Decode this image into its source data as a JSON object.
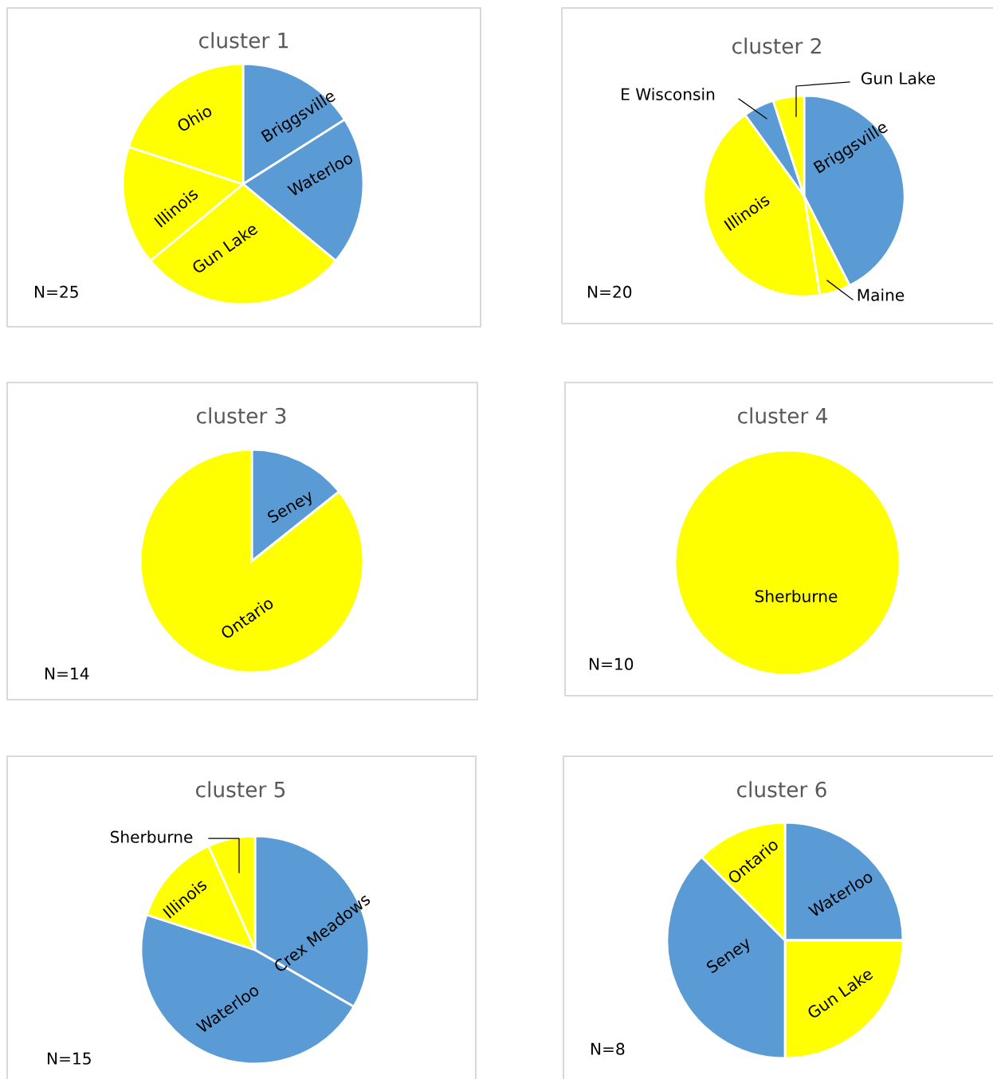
{
  "chart_data": [
    {
      "type": "pie",
      "title": "cluster 1",
      "categories": [
        "Briggsville",
        "Waterloo",
        "Gun Lake",
        "Illinois",
        "Ohio"
      ],
      "values": [
        16,
        20,
        28,
        16,
        20
      ],
      "colors": [
        "#5b9bd5",
        "#5b9bd5",
        "#ffff00",
        "#ffff00",
        "#ffff00"
      ],
      "annotations": [
        "N=25"
      ]
    },
    {
      "type": "pie",
      "title": "cluster 2",
      "categories": [
        "Briggsville",
        "Maine",
        "Illinois",
        "E Wisconsin",
        "Gun Lake"
      ],
      "values": [
        42.5,
        5,
        42.5,
        5,
        5
      ],
      "colors": [
        "#5b9bd5",
        "#ffff00",
        "#ffff00",
        "#5b9bd5",
        "#ffff00"
      ],
      "annotations": [
        "N=20"
      ]
    },
    {
      "type": "pie",
      "title": "cluster 3",
      "categories": [
        "Seney",
        "Ontario"
      ],
      "values": [
        14.3,
        85.7
      ],
      "colors": [
        "#5b9bd5",
        "#ffff00"
      ],
      "annotations": [
        "N=14"
      ]
    },
    {
      "type": "pie",
      "title": "cluster 4",
      "categories": [
        "Sherburne"
      ],
      "values": [
        100
      ],
      "colors": [
        "#ffff00"
      ],
      "annotations": [
        "N=10"
      ]
    },
    {
      "type": "pie",
      "title": "cluster 5",
      "categories": [
        "Crex Meadows",
        "Waterloo",
        "Illinois",
        "Sherburne"
      ],
      "values": [
        33.3,
        46.7,
        13.3,
        6.7
      ],
      "colors": [
        "#5b9bd5",
        "#5b9bd5",
        "#ffff00",
        "#ffff00"
      ],
      "annotations": [
        "N=15"
      ]
    },
    {
      "type": "pie",
      "title": "cluster 6",
      "categories": [
        "Waterloo",
        "Gun Lake",
        "Seney",
        "Ontario"
      ],
      "values": [
        25,
        25,
        37.5,
        12.5
      ],
      "colors": [
        "#5b9bd5",
        "#ffff00",
        "#5b9bd5",
        "#ffff00"
      ],
      "annotations": [
        "N=8"
      ]
    }
  ]
}
